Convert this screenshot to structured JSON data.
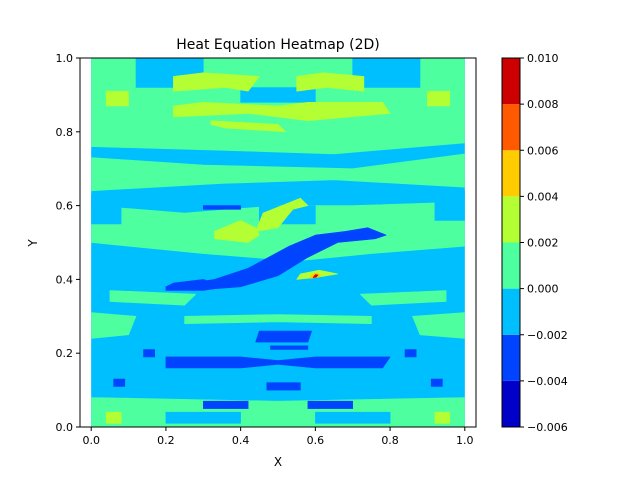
{
  "chart_data": {
    "type": "heatmap",
    "subtype": "filled-contour",
    "title": "Heat Equation Heatmap (2D)",
    "xlabel": "X",
    "ylabel": "Y",
    "xlim": [
      -0.03,
      1.03
    ],
    "ylim": [
      0.0,
      1.0
    ],
    "x_ticks": [
      0.0,
      0.2,
      0.4,
      0.6,
      0.8,
      1.0
    ],
    "x_tick_labels": [
      "0.0",
      "0.2",
      "0.4",
      "0.6",
      "0.8",
      "1.0"
    ],
    "y_ticks": [
      0.0,
      0.2,
      0.4,
      0.6,
      0.8,
      1.0
    ],
    "y_tick_labels": [
      "0.0",
      "0.2",
      "0.4",
      "0.6",
      "0.8",
      "1.0"
    ],
    "colorbar": {
      "levels": [
        -0.006,
        -0.004,
        -0.002,
        0.0,
        0.002,
        0.004,
        0.006,
        0.008,
        0.01
      ],
      "tick_labels": [
        "−0.006",
        "−0.004",
        "−0.002",
        "0.000",
        "0.002",
        "0.004",
        "0.006",
        "0.008",
        "0.010"
      ],
      "colors": [
        "#0000c8",
        "#0044ff",
        "#00bfff",
        "#4dff9f",
        "#b3ff33",
        "#ffcc00",
        "#ff5a00",
        "#cc0000"
      ]
    },
    "regions": [
      {
        "level": 2,
        "x": [
          0.0,
          1.0,
          1.0,
          0.0
        ],
        "y": [
          0.0,
          0.0,
          1.0,
          1.0
        ]
      },
      {
        "level": 3,
        "x": [
          0.0,
          0.3,
          0.55,
          0.75,
          1.0,
          1.0,
          0.7,
          0.5,
          0.25,
          0.0
        ],
        "y": [
          0.5,
          0.47,
          0.45,
          0.47,
          0.49,
          0.61,
          0.6,
          0.6,
          0.58,
          0.6
        ]
      },
      {
        "level": 3,
        "x": [
          0.0,
          0.35,
          0.65,
          1.0,
          1.0,
          0.7,
          0.3,
          0.0
        ],
        "y": [
          0.64,
          0.66,
          0.67,
          0.65,
          0.74,
          0.7,
          0.71,
          0.73
        ]
      },
      {
        "level": 3,
        "x": [
          0.0,
          0.35,
          0.65,
          1.0,
          1.0,
          0.7,
          0.35,
          0.0
        ],
        "y": [
          0.76,
          0.75,
          0.74,
          0.77,
          1.0,
          1.0,
          1.0,
          1.0
        ]
      },
      {
        "level": 3,
        "x": [
          0.0,
          0.1,
          0.12,
          0.0
        ],
        "y": [
          0.24,
          0.25,
          0.3,
          0.31
        ]
      },
      {
        "level": 3,
        "x": [
          0.88,
          1.0,
          1.0,
          0.86
        ],
        "y": [
          0.25,
          0.24,
          0.31,
          0.3
        ]
      },
      {
        "level": 3,
        "x": [
          0.25,
          0.5,
          0.75,
          0.75,
          0.5,
          0.25
        ],
        "y": [
          0.28,
          0.285,
          0.28,
          0.3,
          0.305,
          0.3
        ]
      },
      {
        "level": 3,
        "x": [
          0.0,
          0.5,
          1.0,
          1.0,
          0.5,
          0.0
        ],
        "y": [
          0.0,
          0.0,
          0.0,
          0.08,
          0.07,
          0.08
        ]
      },
      {
        "level": 3,
        "x": [
          0.05,
          0.25,
          0.28,
          0.05
        ],
        "y": [
          0.34,
          0.33,
          0.36,
          0.37
        ]
      },
      {
        "level": 3,
        "x": [
          0.75,
          0.95,
          0.95,
          0.72
        ],
        "y": [
          0.33,
          0.34,
          0.37,
          0.36
        ]
      },
      {
        "level": 2,
        "x": [
          0.0,
          0.08,
          0.08,
          0.0
        ],
        "y": [
          0.55,
          0.55,
          0.63,
          0.63
        ]
      },
      {
        "level": 2,
        "x": [
          0.92,
          1.0,
          1.0,
          0.92
        ],
        "y": [
          0.56,
          0.56,
          0.64,
          0.64
        ]
      },
      {
        "level": 2,
        "x": [
          0.12,
          0.3,
          0.3,
          0.12
        ],
        "y": [
          0.92,
          0.92,
          1.0,
          1.0
        ]
      },
      {
        "level": 2,
        "x": [
          0.7,
          0.88,
          0.88,
          0.7
        ],
        "y": [
          0.92,
          0.92,
          1.0,
          1.0
        ]
      },
      {
        "level": 2,
        "x": [
          0.4,
          0.6,
          0.6,
          0.4
        ],
        "y": [
          0.88,
          0.88,
          0.92,
          0.92
        ]
      },
      {
        "level": 2,
        "x": [
          0.2,
          0.4,
          0.4,
          0.2
        ],
        "y": [
          0.01,
          0.01,
          0.04,
          0.04
        ]
      },
      {
        "level": 2,
        "x": [
          0.6,
          0.8,
          0.8,
          0.6
        ],
        "y": [
          0.01,
          0.01,
          0.04,
          0.04
        ]
      },
      {
        "level": 2,
        "x": [
          0.45,
          0.6,
          0.6,
          0.45
        ],
        "y": [
          0.55,
          0.55,
          0.6,
          0.6
        ]
      },
      {
        "level": 4,
        "x": [
          0.22,
          0.36,
          0.42,
          0.45,
          0.3,
          0.22
        ],
        "y": [
          0.91,
          0.92,
          0.91,
          0.95,
          0.96,
          0.95
        ]
      },
      {
        "level": 4,
        "x": [
          0.55,
          0.63,
          0.73,
          0.73,
          0.62,
          0.55
        ],
        "y": [
          0.91,
          0.92,
          0.91,
          0.95,
          0.96,
          0.95
        ]
      },
      {
        "level": 4,
        "x": [
          0.22,
          0.42,
          0.5,
          0.5,
          0.3,
          0.22
        ],
        "y": [
          0.84,
          0.85,
          0.84,
          0.87,
          0.88,
          0.87
        ]
      },
      {
        "level": 4,
        "x": [
          0.5,
          0.58,
          0.8,
          0.78,
          0.58,
          0.5
        ],
        "y": [
          0.84,
          0.83,
          0.85,
          0.88,
          0.88,
          0.87
        ]
      },
      {
        "level": 4,
        "x": [
          0.32,
          0.5,
          0.52,
          0.36,
          0.32
        ],
        "y": [
          0.83,
          0.82,
          0.8,
          0.81,
          0.82
        ]
      },
      {
        "level": 4,
        "x": [
          0.33,
          0.42,
          0.45,
          0.44,
          0.4,
          0.33
        ],
        "y": [
          0.51,
          0.5,
          0.52,
          0.54,
          0.56,
          0.53
        ]
      },
      {
        "level": 4,
        "x": [
          0.44,
          0.5,
          0.54,
          0.58,
          0.56,
          0.46
        ],
        "y": [
          0.53,
          0.54,
          0.59,
          0.6,
          0.62,
          0.58
        ]
      },
      {
        "level": 4,
        "x": [
          0.04,
          0.1,
          0.1,
          0.04
        ],
        "y": [
          0.87,
          0.87,
          0.91,
          0.91
        ]
      },
      {
        "level": 4,
        "x": [
          0.9,
          0.96,
          0.96,
          0.9
        ],
        "y": [
          0.87,
          0.87,
          0.91,
          0.91
        ]
      },
      {
        "level": 4,
        "x": [
          0.04,
          0.08,
          0.08,
          0.04
        ],
        "y": [
          0.01,
          0.01,
          0.04,
          0.04
        ]
      },
      {
        "level": 4,
        "x": [
          0.92,
          0.96,
          0.96,
          0.92
        ],
        "y": [
          0.01,
          0.01,
          0.04,
          0.04
        ]
      },
      {
        "level": 4,
        "x": [
          0.55,
          0.6,
          0.66,
          0.61,
          0.56
        ],
        "y": [
          0.4,
          0.405,
          0.415,
          0.425,
          0.415
        ]
      },
      {
        "level": 5,
        "x": [
          0.585,
          0.6,
          0.615,
          0.605,
          0.59
        ],
        "y": [
          0.403,
          0.405,
          0.41,
          0.418,
          0.413
        ]
      },
      {
        "level": 7,
        "x": [
          0.594,
          0.602,
          0.607,
          0.6
        ],
        "y": [
          0.405,
          0.406,
          0.412,
          0.413
        ]
      },
      {
        "level": 1,
        "x": [
          0.27,
          0.4,
          0.5,
          0.58,
          0.66,
          0.76,
          0.79,
          0.74,
          0.68,
          0.6,
          0.53,
          0.42,
          0.33,
          0.27
        ],
        "y": [
          0.37,
          0.38,
          0.41,
          0.46,
          0.5,
          0.51,
          0.52,
          0.54,
          0.53,
          0.52,
          0.49,
          0.43,
          0.4,
          0.39
        ]
      },
      {
        "level": 1,
        "x": [
          0.2,
          0.3,
          0.36,
          0.3,
          0.22,
          0.2
        ],
        "y": [
          0.37,
          0.37,
          0.38,
          0.4,
          0.39,
          0.38
        ]
      },
      {
        "level": 1,
        "x": [
          0.2,
          0.4,
          0.5,
          0.6,
          0.78,
          0.8,
          0.6,
          0.5,
          0.4,
          0.2
        ],
        "y": [
          0.16,
          0.16,
          0.17,
          0.16,
          0.16,
          0.19,
          0.19,
          0.18,
          0.19,
          0.19
        ]
      },
      {
        "level": 1,
        "x": [
          0.44,
          0.58,
          0.59,
          0.45
        ],
        "y": [
          0.23,
          0.23,
          0.26,
          0.26
        ]
      },
      {
        "level": 1,
        "x": [
          0.3,
          0.42,
          0.42,
          0.3
        ],
        "y": [
          0.05,
          0.05,
          0.07,
          0.07
        ]
      },
      {
        "level": 1,
        "x": [
          0.58,
          0.7,
          0.7,
          0.58
        ],
        "y": [
          0.05,
          0.05,
          0.07,
          0.07
        ]
      },
      {
        "level": 1,
        "x": [
          0.3,
          0.4,
          0.4,
          0.3
        ],
        "y": [
          0.59,
          0.59,
          0.6,
          0.6
        ]
      },
      {
        "level": 1,
        "x": [
          0.48,
          0.58,
          0.58,
          0.48
        ],
        "y": [
          0.21,
          0.21,
          0.22,
          0.22
        ]
      },
      {
        "level": 1,
        "x": [
          0.14,
          0.17,
          0.17,
          0.14
        ],
        "y": [
          0.19,
          0.19,
          0.21,
          0.21
        ]
      },
      {
        "level": 1,
        "x": [
          0.84,
          0.87,
          0.87,
          0.84
        ],
        "y": [
          0.19,
          0.19,
          0.21,
          0.21
        ]
      },
      {
        "level": 1,
        "x": [
          0.06,
          0.09,
          0.09,
          0.06
        ],
        "y": [
          0.11,
          0.11,
          0.13,
          0.13
        ]
      },
      {
        "level": 1,
        "x": [
          0.91,
          0.94,
          0.94,
          0.91
        ],
        "y": [
          0.11,
          0.11,
          0.13,
          0.13
        ]
      },
      {
        "level": 1,
        "x": [
          0.47,
          0.56,
          0.56,
          0.47
        ],
        "y": [
          0.1,
          0.1,
          0.12,
          0.12
        ]
      }
    ]
  }
}
